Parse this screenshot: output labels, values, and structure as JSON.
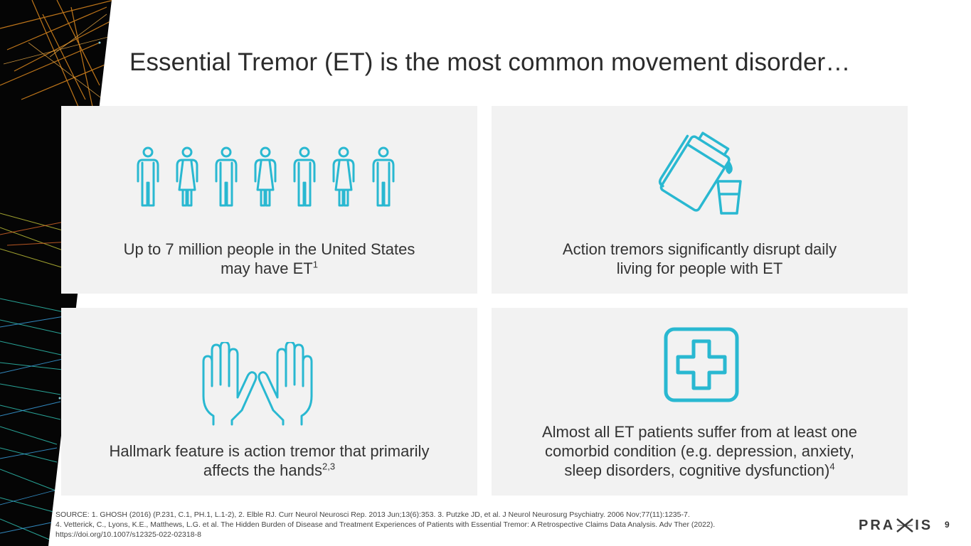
{
  "slide": {
    "title": "Essential Tremor (ET) is the most common movement disorder…",
    "page_number": "9"
  },
  "colors": {
    "accent": "#29b8d1",
    "panel_bg": "#f2f2f2",
    "text": "#333333"
  },
  "panels": [
    {
      "icon": "people-row-icon",
      "text": "Up to 7 million people in the United States may have ET",
      "line1": "Up to 7 million people in the United States",
      "line2": "may have ET",
      "sup": "1"
    },
    {
      "icon": "pouring-pitcher-icon",
      "line1": "Action tremors significantly disrupt daily",
      "line2": "living for people with ET"
    },
    {
      "icon": "hands-icon",
      "line1": "Hallmark feature is action tremor that primarily",
      "line2": "affects the hands",
      "sup": "2,3"
    },
    {
      "icon": "medical-cross-icon",
      "line1": "Almost all ET patients suffer from at least one",
      "line2": "comorbid condition (e.g. depression, anxiety,",
      "line3": "sleep disorders, cognitive dysfunction)",
      "sup": "4"
    }
  ],
  "source": {
    "line1": "SOURCE: 1. GHOSH (2016) (P.231, C.1, PH.1, L.1-2), 2. Elble RJ. Curr Neurol Neurosci Rep. 2013 Jun;13(6):353. 3. Putzke JD, et al. J Neurol Neurosurg Psychiatry. 2006 Nov;77(11):1235-7.",
    "line2": "4. Vetterick, C., Lyons, K.E., Matthews, L.G. et al. The Hidden Burden of Disease and Treatment Experiences of Patients with Essential Tremor: A Retrospective Claims Data Analysis. Adv Ther (2022).",
    "line3": "https://doi.org/10.1007/s12325-022-02318-8"
  },
  "logo": {
    "left": "PRA",
    "right": "IS"
  }
}
